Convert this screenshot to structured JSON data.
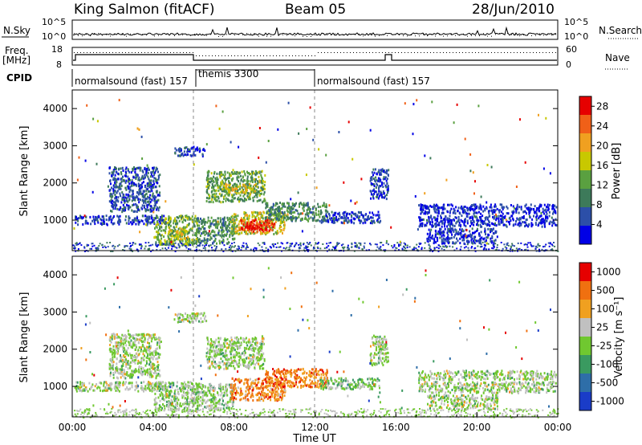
{
  "header": {
    "station": "King Salmon (fitACF)",
    "beam": "Beam 05",
    "date": "28/Jun/2010"
  },
  "aux_panels": {
    "nsky_label": "N.Sky",
    "nsky_ticks": [
      "10^5",
      "10^0"
    ],
    "nsearch_label": "N.Search",
    "nsearch_ticks": [
      "10^5",
      "10^0"
    ],
    "freq_label_1": "Freq.",
    "freq_label_2": "[MHz]",
    "freq_ticks": [
      "18",
      "8"
    ],
    "nave_label": "Nave",
    "nave_ticks": [
      "60",
      "0"
    ],
    "cpid_label": "CPID",
    "cpid_segments": [
      {
        "label": "normalsound (fast) 157",
        "start_hour": 0.0
      },
      {
        "label": "themis 3300",
        "start_hour": 6.0
      },
      {
        "label": "normalsound (fast) 157",
        "start_hour": 12.0
      }
    ]
  },
  "chart_data": [
    {
      "type": "heatmap",
      "name": "power",
      "xlabel": "",
      "ylabel": "Slant Range [km]",
      "xlim": [
        0,
        24
      ],
      "ylim": [
        180,
        4500
      ],
      "yticks": [
        "1000",
        "2000",
        "3000",
        "4000"
      ],
      "colorbar": {
        "label": "Power [dB]",
        "ticks": [
          "4",
          "8",
          "12",
          "16",
          "20",
          "24",
          "28"
        ],
        "range": [
          0,
          30
        ],
        "colors": [
          "#0000e6",
          "#2c4fa8",
          "#3d7a5a",
          "#5aa040",
          "#c8c800",
          "#f0a020",
          "#f06018",
          "#e60000"
        ]
      },
      "echo_regions": [
        {
          "t0": 0.1,
          "t1": 4.6,
          "r0": 900,
          "r1": 1150,
          "level": 0.15
        },
        {
          "t0": 1.8,
          "t1": 4.3,
          "r0": 1250,
          "r1": 2450,
          "level": 0.2
        },
        {
          "t0": 4.0,
          "t1": 6.2,
          "r0": 350,
          "r1": 1150,
          "level": 0.45
        },
        {
          "t0": 4.7,
          "t1": 5.6,
          "r0": 500,
          "r1": 800,
          "level": 0.6
        },
        {
          "t0": 5.0,
          "t1": 6.6,
          "r0": 2750,
          "r1": 3000,
          "level": 0.15
        },
        {
          "t0": 6.1,
          "t1": 8.0,
          "r0": 400,
          "r1": 1100,
          "level": 0.35
        },
        {
          "t0": 6.6,
          "t1": 9.5,
          "r0": 1500,
          "r1": 2350,
          "level": 0.4
        },
        {
          "t0": 7.5,
          "t1": 9.0,
          "r0": 1750,
          "r1": 2000,
          "level": 0.6
        },
        {
          "t0": 7.8,
          "t1": 10.5,
          "r0": 650,
          "r1": 1250,
          "level": 0.55
        },
        {
          "t0": 8.2,
          "t1": 10.0,
          "r0": 750,
          "r1": 1050,
          "level": 0.85
        },
        {
          "t0": 8.5,
          "t1": 9.6,
          "r0": 700,
          "r1": 900,
          "level": 0.95
        },
        {
          "t0": 9.5,
          "t1": 12.6,
          "r0": 1000,
          "r1": 1500,
          "level": 0.35
        },
        {
          "t0": 12.2,
          "t1": 15.2,
          "r0": 950,
          "r1": 1250,
          "level": 0.15
        },
        {
          "t0": 14.7,
          "t1": 15.6,
          "r0": 1600,
          "r1": 2400,
          "level": 0.15
        },
        {
          "t0": 17.1,
          "t1": 23.9,
          "r0": 1200,
          "r1": 1450,
          "level": 0.1
        },
        {
          "t0": 17.1,
          "t1": 23.9,
          "r0": 850,
          "r1": 1150,
          "level": 0.12
        },
        {
          "t0": 17.5,
          "t1": 21.0,
          "r0": 400,
          "r1": 800,
          "level": 0.12
        }
      ],
      "ground_scatter_band": {
        "r0": 180,
        "r1": 420
      }
    },
    {
      "type": "heatmap",
      "name": "velocity",
      "xlabel": "Time UT",
      "ylabel": "Slant Range [km]",
      "xlim": [
        0,
        24
      ],
      "ylim": [
        180,
        4500
      ],
      "xticks": [
        "00:00",
        "04:00",
        "08:00",
        "12:00",
        "16:00",
        "20:00",
        "00:00"
      ],
      "yticks": [
        "1000",
        "2000",
        "3000",
        "4000"
      ],
      "colorbar": {
        "label": "Velocity [m s⁻¹]",
        "ticks": [
          "1000",
          "500",
          "100",
          "25",
          "-25",
          "-100",
          "-500",
          "-1000"
        ],
        "colors": [
          "#1a3cc8",
          "#2e6ea8",
          "#3a9a60",
          "#70c830",
          "#c0c0c0",
          "#f0a020",
          "#f07010",
          "#e60000"
        ]
      },
      "echo_regions": [
        {
          "t0": 0.1,
          "t1": 4.6,
          "r0": 900,
          "r1": 1150,
          "level": 0.5
        },
        {
          "t0": 1.8,
          "t1": 4.3,
          "r0": 1250,
          "r1": 2450,
          "level": 0.5
        },
        {
          "t0": 4.0,
          "t1": 6.2,
          "r0": 350,
          "r1": 1150,
          "level": 0.48
        },
        {
          "t0": 5.0,
          "t1": 6.6,
          "r0": 2750,
          "r1": 3000,
          "level": 0.5
        },
        {
          "t0": 6.1,
          "t1": 8.0,
          "r0": 400,
          "r1": 1100,
          "level": 0.48
        },
        {
          "t0": 6.6,
          "t1": 9.5,
          "r0": 1500,
          "r1": 2350,
          "level": 0.5
        },
        {
          "t0": 7.8,
          "t1": 10.5,
          "r0": 650,
          "r1": 1250,
          "level": 0.75
        },
        {
          "t0": 9.5,
          "t1": 12.6,
          "r0": 1000,
          "r1": 1500,
          "level": 0.78
        },
        {
          "t0": 12.2,
          "t1": 15.2,
          "r0": 950,
          "r1": 1250,
          "level": 0.45
        },
        {
          "t0": 14.7,
          "t1": 15.6,
          "r0": 1600,
          "r1": 2400,
          "level": 0.5
        },
        {
          "t0": 17.1,
          "t1": 23.9,
          "r0": 1200,
          "r1": 1450,
          "level": 0.5
        },
        {
          "t0": 17.1,
          "t1": 23.9,
          "r0": 850,
          "r1": 1150,
          "level": 0.5
        },
        {
          "t0": 17.5,
          "t1": 21.0,
          "r0": 400,
          "r1": 800,
          "level": 0.5
        }
      ],
      "ground_scatter_band": {
        "r0": 180,
        "r1": 420
      }
    }
  ]
}
